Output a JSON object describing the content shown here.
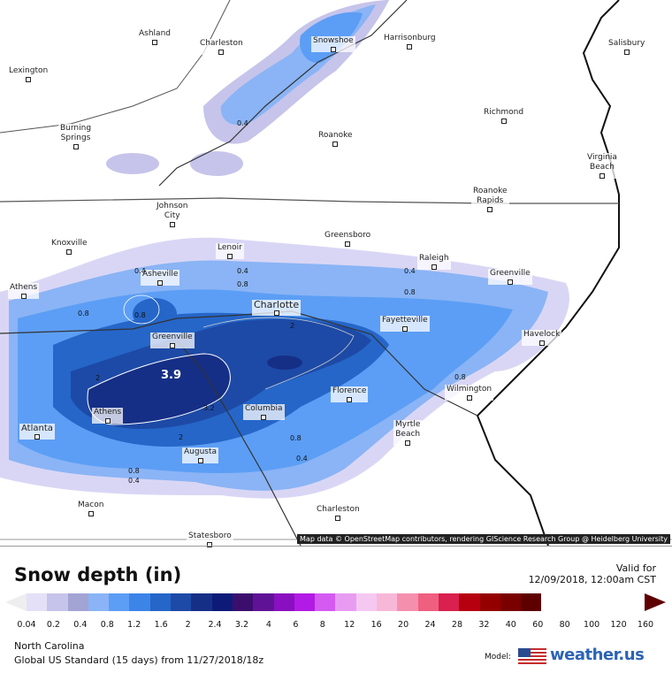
{
  "map": {
    "attribution": "Map data © OpenStreetMap contributors, rendering GIScience Research Group @ Heidelberg University",
    "cities": [
      {
        "name": "Ashland"
      },
      {
        "name": "Charleston"
      },
      {
        "name": "Snowshoe"
      },
      {
        "name": "Harrisonburg"
      },
      {
        "name": "Salisbury"
      },
      {
        "name": "Lexington"
      },
      {
        "name": "Richmond"
      },
      {
        "name": "Burning\nSprings"
      },
      {
        "name": "Roanoke"
      },
      {
        "name": "Virginia\nBeach"
      },
      {
        "name": "Roanoke\nRapids"
      },
      {
        "name": "Johnson\nCity"
      },
      {
        "name": "Knoxville"
      },
      {
        "name": "Greensboro"
      },
      {
        "name": "Lenoir"
      },
      {
        "name": "Raleigh"
      },
      {
        "name": "Greenville"
      },
      {
        "name": "Asheville"
      },
      {
        "name": "Athens"
      },
      {
        "name": "Charlotte"
      },
      {
        "name": "Fayetteville"
      },
      {
        "name": "Havelock"
      },
      {
        "name": "Greenville"
      },
      {
        "name": "Wilmington"
      },
      {
        "name": "Florence"
      },
      {
        "name": "Athens"
      },
      {
        "name": "Columbia"
      },
      {
        "name": "Myrtle\nBeach"
      },
      {
        "name": "Atlanta"
      },
      {
        "name": "Augusta"
      },
      {
        "name": "Macon"
      },
      {
        "name": "Charleston"
      },
      {
        "name": "Statesboro"
      }
    ],
    "contour_labels": [
      "0.4",
      "0.4",
      "0.8",
      "0.4",
      "0.8",
      "0.8",
      "0.4",
      "0.8",
      "2",
      "2",
      "3.2",
      "2",
      "0.8",
      "0.4",
      "0.8",
      "0.4",
      "0.8"
    ],
    "max_value": "3.9"
  },
  "legend": {
    "title": "Snow depth (in)",
    "valid_label": "Valid for",
    "valid_time": "12/09/2018, 12:00am CST",
    "ticks": [
      "0.04",
      "0.2",
      "0.4",
      "0.8",
      "1.2",
      "1.6",
      "2",
      "2.4",
      "3.2",
      "4",
      "6",
      "8",
      "12",
      "16",
      "20",
      "24",
      "28",
      "32",
      "40",
      "60",
      "80",
      "100",
      "120",
      "160"
    ],
    "colors": [
      "#e4e0f7",
      "#c6c4ea",
      "#a3a3d4",
      "#8ab4f5",
      "#5c9ef5",
      "#3c84e8",
      "#2566c8",
      "#1d4aa6",
      "#162f86",
      "#0d1a78",
      "#3b0e6e",
      "#601296",
      "#8a0fc0",
      "#b21ae6",
      "#d45af2",
      "#e79cf2",
      "#f5c8f2",
      "#f7b8d8",
      "#f58fae",
      "#ef5f80",
      "#d9204e",
      "#b60010",
      "#940000",
      "#7a0000",
      "#5e0000"
    ],
    "region": "North Carolina",
    "model_run": "Global US Standard (15 days) from 11/27/2018/18z",
    "model_label": "Model:",
    "brand": "weather.us"
  }
}
